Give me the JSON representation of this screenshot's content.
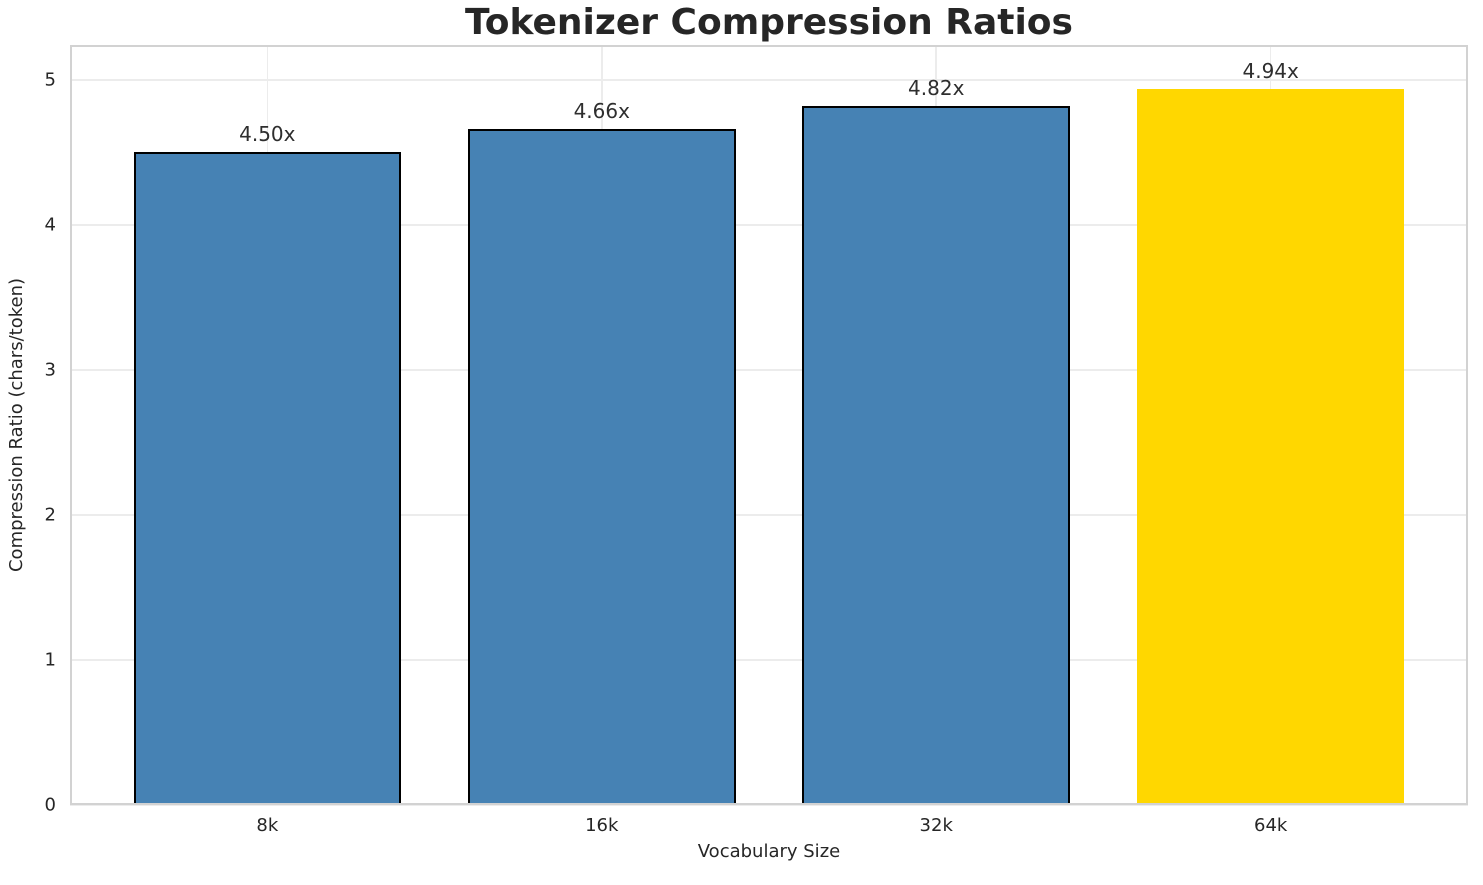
{
  "chart_data": {
    "type": "bar",
    "title": "Tokenizer Compression Ratios",
    "xlabel": "Vocabulary Size",
    "ylabel": "Compression Ratio (chars/token)",
    "categories": [
      "8k",
      "16k",
      "32k",
      "64k"
    ],
    "values": [
      4.5,
      4.66,
      4.82,
      4.94
    ],
    "bar_labels": [
      "4.50x",
      "4.66x",
      "4.82x",
      "4.94x"
    ],
    "bar_colors": [
      "#4682b4",
      "#4682b4",
      "#4682b4",
      "#ffd700"
    ],
    "bar_edge_colors": [
      "#000000",
      "#000000",
      "#000000",
      "none"
    ],
    "ylim": [
      0,
      5.24
    ],
    "yticks": [
      0,
      1,
      2,
      3,
      4,
      5
    ],
    "grid": true,
    "legend_position": "none",
    "bar_width_fraction": 0.8,
    "x_edge_margin": 0.59,
    "colors": {
      "bar_default": "#4682b4",
      "bar_highlight": "#ffd700",
      "grid": "#ececec",
      "spine": "#d2d2d2",
      "text": "#262626",
      "background": "#ffffff"
    }
  }
}
